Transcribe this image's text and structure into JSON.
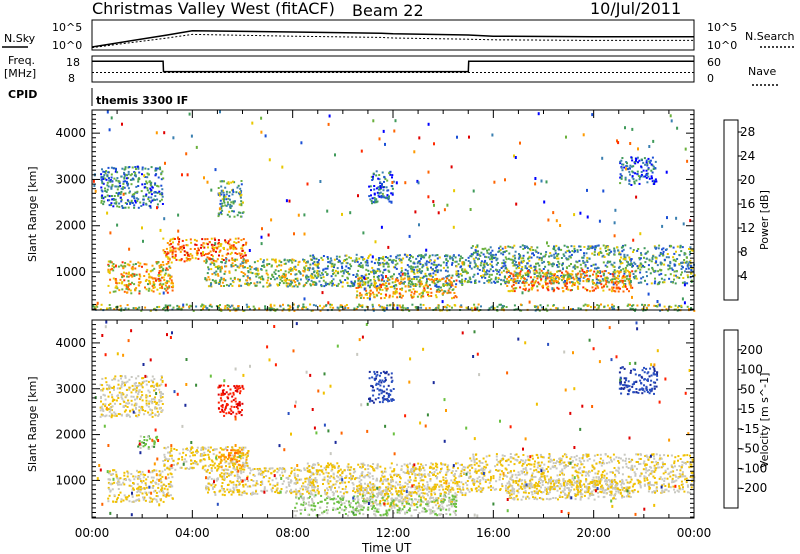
{
  "header": {
    "station": "Christmas Valley West (fitACF)",
    "beam": "Beam 22",
    "date": "10/Jul/2011"
  },
  "panels": {
    "nsky_label": "N.Sky",
    "nsearch_label": "N.Search",
    "freq_label": "Freq.",
    "freq_unit": "[MHz]",
    "nave_label": "Nave",
    "cpid_label": "CPID",
    "cpid_value": "themis 3300 IF",
    "nsky_ticks": [
      "10^5",
      "10^0"
    ],
    "nsearch_ticks": [
      "10^5",
      "10^0"
    ],
    "freq_ticks": [
      "18",
      "8"
    ],
    "nave_ticks": [
      "60",
      "0"
    ]
  },
  "axes": {
    "ylabel_power": "Slant Range [km]",
    "ylabel_velocity": "Slant Range [km]",
    "xlabel": "Time UT",
    "x_ticks": [
      "00:00",
      "04:00",
      "08:00",
      "12:00",
      "16:00",
      "20:00",
      "00:00"
    ],
    "y_ticks": [
      "1000",
      "2000",
      "3000",
      "4000"
    ]
  },
  "colorbars": {
    "power": {
      "label": "Power [dB]",
      "ticks": [
        "4",
        "8",
        "12",
        "16",
        "20",
        "24",
        "28"
      ],
      "colors": [
        "#0000ff",
        "#1a4fd6",
        "#3a7fb0",
        "#3f9a5a",
        "#6ab03c",
        "#e8c800",
        "#ff9a00",
        "#ff6400",
        "#ff2a00",
        "#e00000"
      ]
    },
    "velocity": {
      "label": "Velocity [m s^-1]",
      "ticks": [
        "200",
        "100",
        "50",
        "15",
        "-15",
        "-50",
        "-100",
        "-200"
      ],
      "colors": [
        "#1a2a9a",
        "#2a4fc0",
        "#3a8a3a",
        "#6ac040",
        "#c8c8c0",
        "#f0c000",
        "#ff9a00",
        "#ff6400",
        "#ff2000",
        "#e00000"
      ]
    }
  },
  "chart_data": [
    {
      "type": "line",
      "title": "N.Sky / N.Search",
      "x": [
        "00:00",
        "03:00",
        "04:00",
        "08:00",
        "11:30",
        "12:00",
        "15:00",
        "16:00",
        "20:00",
        "24:00"
      ],
      "series": [
        {
          "name": "N.Sky",
          "values": [
            0.5,
            2.5,
            3.2,
            3.0,
            2.8,
            2.7,
            2.5,
            2.3,
            2.2,
            2.2
          ]
        },
        {
          "name": "N.Search",
          "values": [
            0.4,
            2.0,
            2.6,
            2.3,
            2.1,
            2.0,
            1.8,
            1.7,
            1.6,
            1.6
          ]
        }
      ],
      "ylim": [
        0,
        5
      ]
    },
    {
      "type": "line",
      "title": "Freq. / Nave",
      "x": [
        "00:00",
        "02:50",
        "02:51",
        "15:00",
        "15:01",
        "24:00"
      ],
      "series": [
        {
          "name": "Freq.",
          "values": [
            16,
            16,
            12,
            12,
            16,
            16
          ]
        },
        {
          "name": "Nave",
          "values": [
            22,
            22,
            22,
            22,
            22,
            22
          ]
        }
      ],
      "ylim": [
        8,
        18
      ]
    },
    {
      "type": "heatmap",
      "title": "Power [dB]",
      "xlabel": "Time UT",
      "ylabel": "Slant Range [km]",
      "xlim": [
        "00:00",
        "24:00"
      ],
      "ylim": [
        180,
        4500
      ],
      "zlim": [
        0,
        30
      ],
      "regions": [
        {
          "t": [
            0.6,
            3.2
          ],
          "r": [
            550,
            1250
          ],
          "value": 18
        },
        {
          "t": [
            2.8,
            6.2
          ],
          "r": [
            1250,
            1750
          ],
          "value": 22
        },
        {
          "t": [
            4.5,
            9.0
          ],
          "r": [
            700,
            1300
          ],
          "value": 14
        },
        {
          "t": [
            8.5,
            15.0
          ],
          "r": [
            700,
            1400
          ],
          "value": 10
        },
        {
          "t": [
            10.5,
            14.5
          ],
          "r": [
            450,
            900
          ],
          "value": 18
        },
        {
          "t": [
            15.0,
            24.0
          ],
          "r": [
            750,
            1600
          ],
          "value": 10
        },
        {
          "t": [
            16.5,
            21.5
          ],
          "r": [
            600,
            1050
          ],
          "value": 20
        },
        {
          "t": [
            0.3,
            2.8
          ],
          "r": [
            2400,
            3300
          ],
          "value": 8
        },
        {
          "t": [
            5.0,
            6.0
          ],
          "r": [
            2200,
            3000
          ],
          "value": 10
        },
        {
          "t": [
            11.0,
            12.0
          ],
          "r": [
            2500,
            3200
          ],
          "value": 6
        },
        {
          "t": [
            0.0,
            24.0
          ],
          "r": [
            180,
            320
          ],
          "value": 14
        },
        {
          "t": [
            21.0,
            22.5
          ],
          "r": [
            2900,
            3500
          ],
          "value": 6
        }
      ]
    },
    {
      "type": "heatmap",
      "title": "Velocity [m s^-1]",
      "xlabel": "Time UT",
      "ylabel": "Slant Range [km]",
      "xlim": [
        "00:00",
        "24:00"
      ],
      "ylim": [
        180,
        4500
      ],
      "zlim": [
        -200,
        200
      ],
      "regions": [
        {
          "t": [
            0.6,
            3.2
          ],
          "r": [
            550,
            1250
          ],
          "value": 0
        },
        {
          "t": [
            2.8,
            6.2
          ],
          "r": [
            1250,
            1750
          ],
          "value": 0
        },
        {
          "t": [
            4.5,
            9.0
          ],
          "r": [
            700,
            1300
          ],
          "value": 0
        },
        {
          "t": [
            8.5,
            15.0
          ],
          "r": [
            700,
            1400
          ],
          "value": 0
        },
        {
          "t": [
            10.5,
            14.5
          ],
          "r": [
            450,
            900
          ],
          "value": 0
        },
        {
          "t": [
            15.0,
            24.0
          ],
          "r": [
            750,
            1600
          ],
          "value": 0
        },
        {
          "t": [
            16.5,
            21.5
          ],
          "r": [
            600,
            1050
          ],
          "value": 0
        },
        {
          "t": [
            0.3,
            2.8
          ],
          "r": [
            2400,
            3300
          ],
          "value": 0
        },
        {
          "t": [
            1.8,
            2.6
          ],
          "r": [
            1700,
            2000
          ],
          "value": -60
        },
        {
          "t": [
            5.0,
            6.2
          ],
          "r": [
            1300,
            1700
          ],
          "value": 60
        },
        {
          "t": [
            5.0,
            6.0
          ],
          "r": [
            2400,
            3100
          ],
          "value": 150
        },
        {
          "t": [
            8.0,
            14.5
          ],
          "r": [
            250,
            700
          ],
          "value": -40
        },
        {
          "t": [
            11.0,
            12.0
          ],
          "r": [
            2700,
            3400
          ],
          "value": -150
        },
        {
          "t": [
            21.0,
            22.5
          ],
          "r": [
            2900,
            3500
          ],
          "value": -150
        }
      ]
    }
  ]
}
